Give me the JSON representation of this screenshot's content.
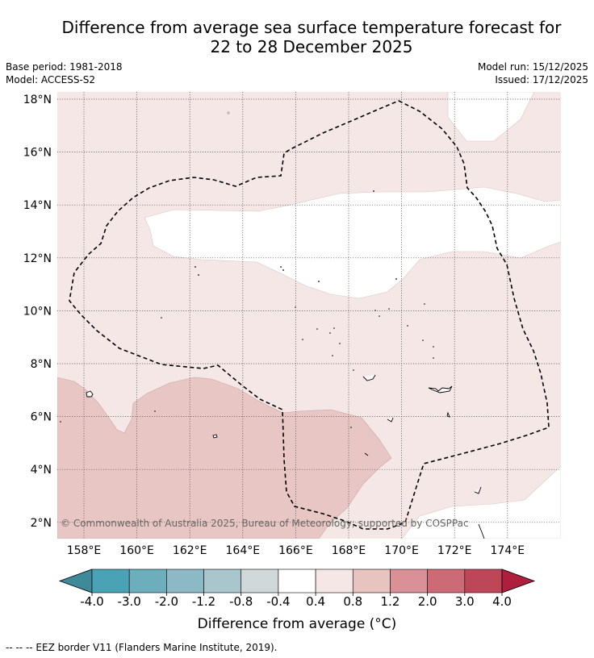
{
  "title_line1": "Difference from average sea surface temperature forecast for",
  "title_line2": "22 to 28 December 2025",
  "base_period": "Base period: 1981-2018",
  "model": "Model: ACCESS-S2",
  "model_run": "Model run: 15/12/2025",
  "issued": "Issued: 17/12/2025",
  "lat_labels": [
    "18°N",
    "16°N",
    "14°N",
    "12°N",
    "10°N",
    "8°N",
    "6°N",
    "4°N",
    "2°N"
  ],
  "lon_labels": [
    "158°E",
    "160°E",
    "162°E",
    "164°E",
    "166°E",
    "168°E",
    "170°E",
    "172°E",
    "174°E"
  ],
  "copyright": "© Commonwealth of Australia 2025, Bureau of Meteorology; supported by COSPPac",
  "colorbar": {
    "ticks": [
      "-4.0",
      "-3.0",
      "-2.0",
      "-1.2",
      "-0.8",
      "-0.4",
      "0.4",
      "0.8",
      "1.2",
      "2.0",
      "3.0",
      "4.0"
    ],
    "colors": [
      "#4aa3b5",
      "#6daebd",
      "#8cb9c5",
      "#a9c6cc",
      "#d0d8da",
      "#ffffff",
      "#f5e7e6",
      "#e8c4c1",
      "#d99097",
      "#cc6a75",
      "#bd4658"
    ],
    "under_color": "#3e8a98",
    "over_color": "#b01e3e",
    "label": "Difference from average (°C)"
  },
  "map_colors": {
    "band_0p4_0p8": "#f4e7e6",
    "band_0p8_1p2": "#e8c6c3",
    "neutral": "#ffffff"
  },
  "footer": "--  --  -- EEZ border V11 (Flanders Marine Institute, 2019)."
}
